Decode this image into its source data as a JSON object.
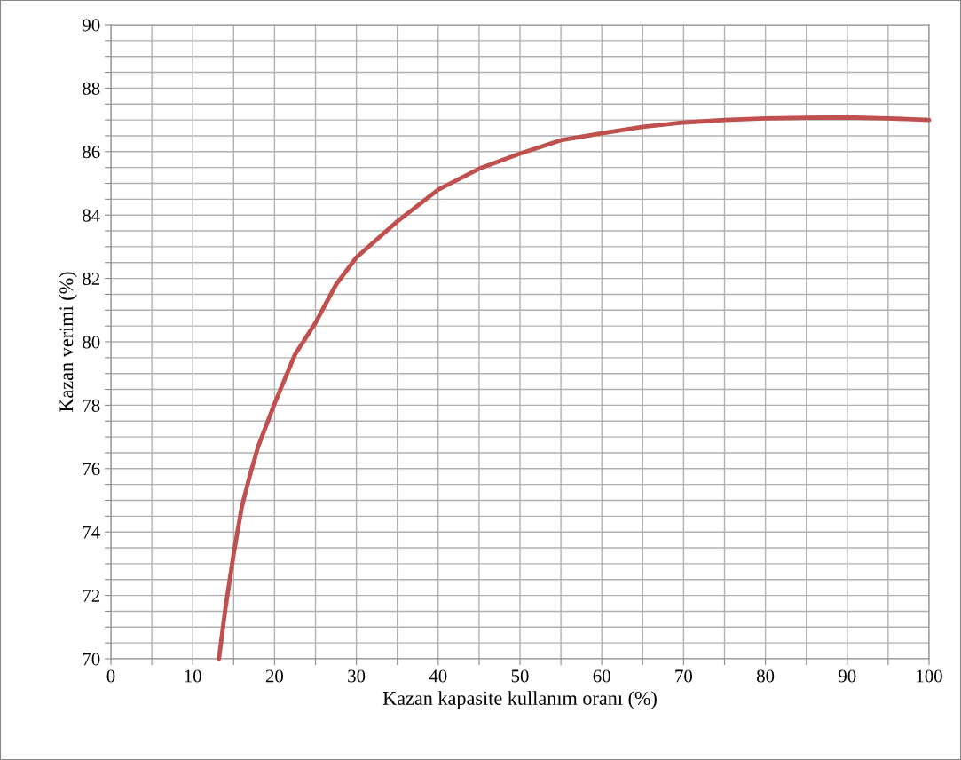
{
  "chart_data": {
    "type": "line",
    "xlabel": "Kazan kapasite kullanım oranı (%)",
    "ylabel": "Kazan verimi (%)",
    "x": [
      13.2,
      14,
      15,
      16,
      17,
      18,
      20,
      22.5,
      25,
      27.5,
      30,
      35,
      40,
      45,
      50,
      55,
      60,
      65,
      70,
      75,
      80,
      85,
      90,
      95,
      100
    ],
    "series": [
      {
        "color": "#c0504d",
        "values": [
          70,
          71.6,
          73.3,
          74.8,
          75.8,
          76.7,
          78.05,
          79.6,
          80.6,
          81.8,
          82.66,
          83.8,
          84.8,
          85.46,
          85.94,
          86.36,
          86.58,
          86.78,
          86.92,
          87.0,
          87.05,
          87.07,
          87.08,
          87.05,
          87.0
        ]
      }
    ],
    "xlim": [
      0,
      100
    ],
    "ylim": [
      70,
      90
    ],
    "xticks": [
      0,
      {
        "value": 5,
        "label": null
      },
      10,
      {
        "value": 15,
        "label": null
      },
      20,
      {
        "value": 25,
        "label": null
      },
      30,
      {
        "value": 35,
        "label": null
      },
      40,
      {
        "value": 45,
        "label": null
      },
      50,
      {
        "value": 55,
        "label": null
      },
      60,
      {
        "value": 65,
        "label": null
      },
      70,
      {
        "value": 75,
        "label": null
      },
      80,
      {
        "value": 85,
        "label": null
      },
      90,
      {
        "value": 95,
        "label": null
      },
      100
    ],
    "yticks": [
      70,
      {
        "value": 70.5,
        "label": null
      },
      {
        "value": 71,
        "label": null
      },
      {
        "value": 71.5,
        "label": null
      },
      72,
      {
        "value": 72.5,
        "label": null
      },
      {
        "value": 73,
        "label": null
      },
      {
        "value": 73.5,
        "label": null
      },
      74,
      {
        "value": 74.5,
        "label": null
      },
      {
        "value": 75,
        "label": null
      },
      {
        "value": 75.5,
        "label": null
      },
      76,
      {
        "value": 76.5,
        "label": null
      },
      {
        "value": 77,
        "label": null
      },
      {
        "value": 77.5,
        "label": null
      },
      78,
      {
        "value": 78.5,
        "label": null
      },
      {
        "value": 79,
        "label": null
      },
      {
        "value": 79.5,
        "label": null
      },
      80,
      {
        "value": 80.5,
        "label": null
      },
      {
        "value": 81,
        "label": null
      },
      {
        "value": 81.5,
        "label": null
      },
      82,
      {
        "value": 82.5,
        "label": null
      },
      {
        "value": 83,
        "label": null
      },
      {
        "value": 83.5,
        "label": null
      },
      84,
      {
        "value": 84.5,
        "label": null
      },
      {
        "value": 85,
        "label": null
      },
      {
        "value": 85.5,
        "label": null
      },
      86,
      {
        "value": 86.5,
        "label": null
      },
      {
        "value": 87,
        "label": null
      },
      {
        "value": 87.5,
        "label": null
      },
      88,
      {
        "value": 88.5,
        "label": null
      },
      {
        "value": 89,
        "label": null
      },
      {
        "value": 89.5,
        "label": null
      },
      90
    ],
    "grid": true,
    "marker": "none",
    "line_style": "solid",
    "legend": false
  }
}
